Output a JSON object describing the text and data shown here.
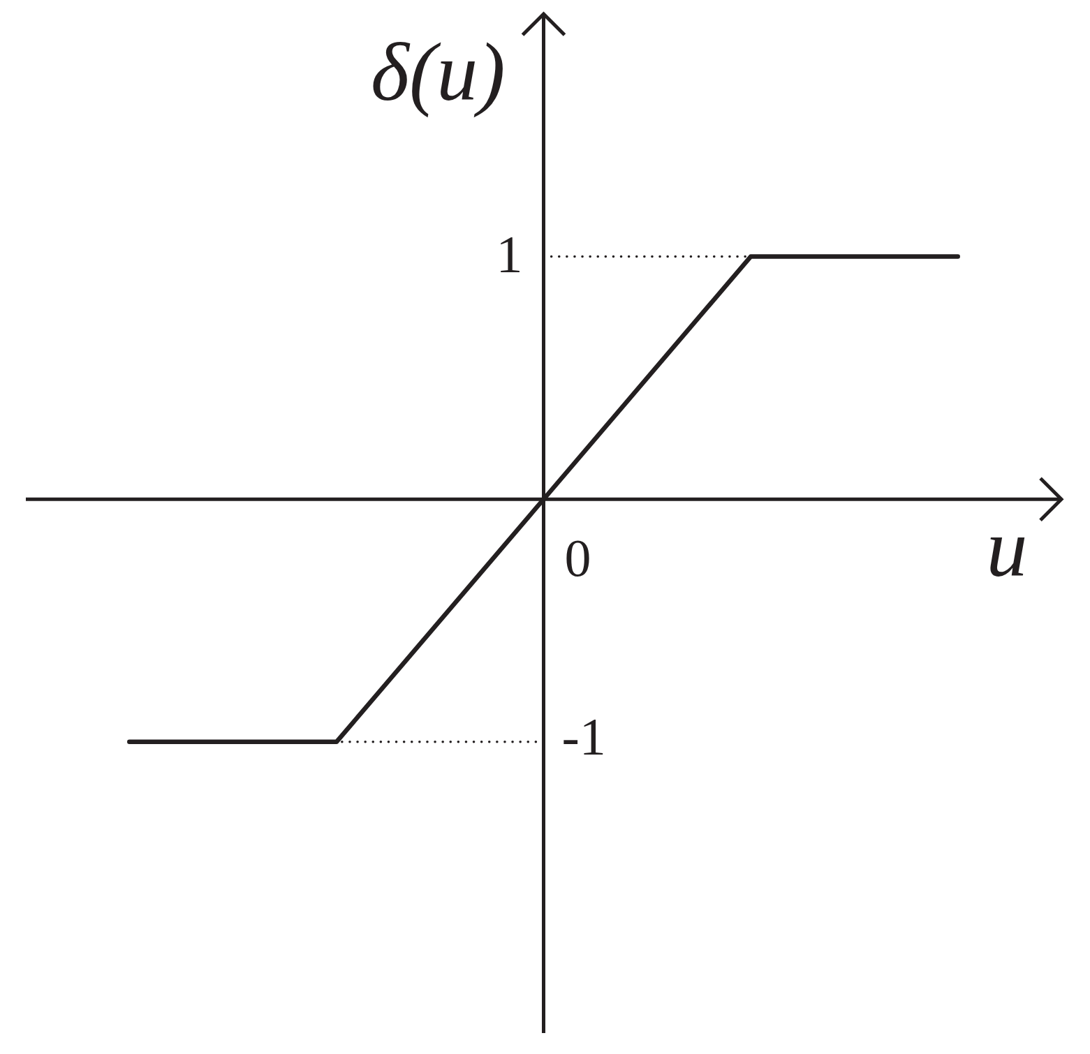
{
  "chart_data": {
    "type": "line",
    "xlabel": "u",
    "ylabel": "δ(u)",
    "categories": [
      null,
      null,
      null,
      null,
      null
    ],
    "series": [
      {
        "color": "#231f20",
        "values": [
          -1,
          -1,
          0,
          1,
          1
        ]
      }
    ],
    "ylim": [
      -2.2,
      2
    ],
    "ref_lines": [
      {
        "axis": "y",
        "value": 1,
        "label": "1",
        "line_style": "dotted",
        "color": "#231f20"
      },
      {
        "axis": "y",
        "value": -1,
        "label": "-1",
        "line_style": "dotted",
        "color": "#231f20"
      }
    ],
    "annotations": [
      "0"
    ],
    "legend": false,
    "marker": "none"
  }
}
